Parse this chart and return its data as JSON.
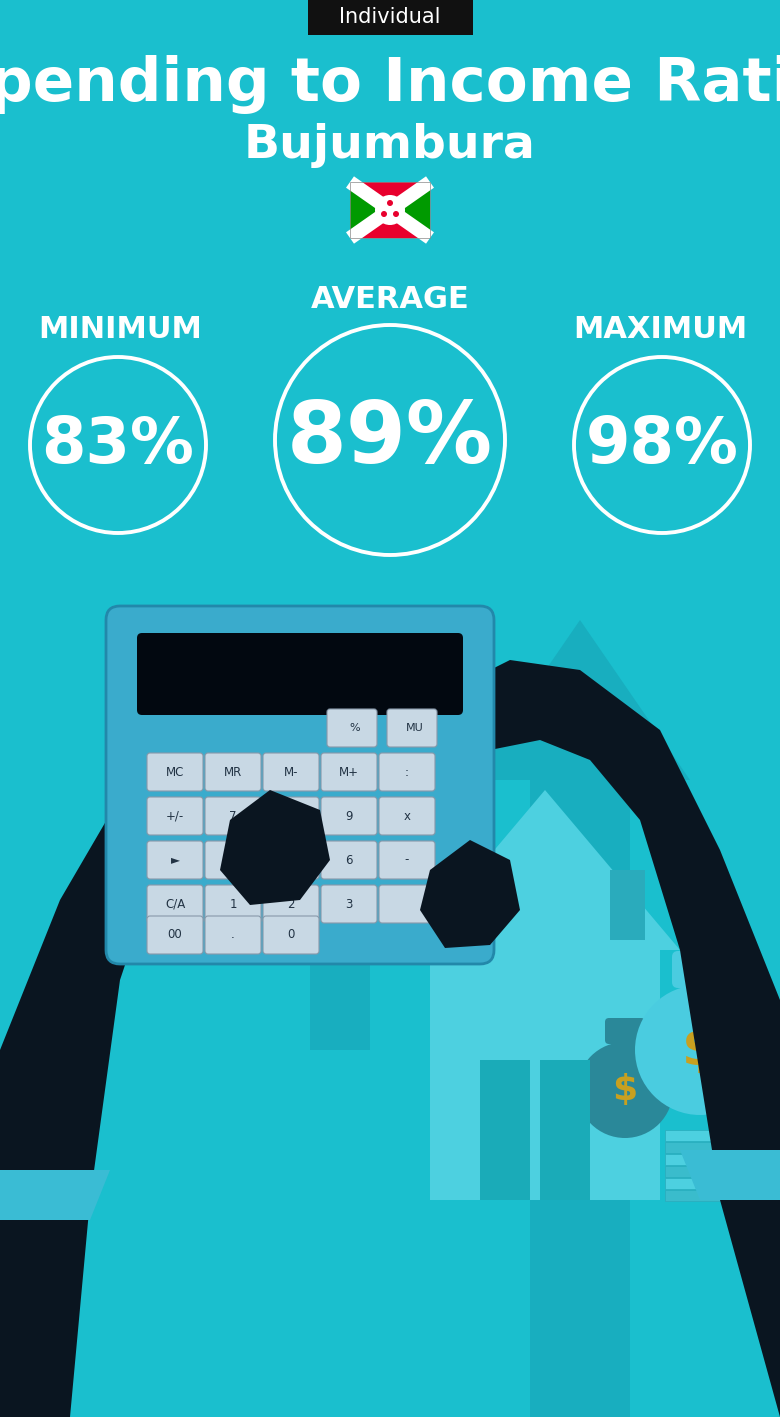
{
  "title": "Spending to Income Ratio",
  "subtitle": "Bujumbura",
  "badge_text": "Individual",
  "bg_color": "#1ABFCE",
  "text_color": "#FFFFFF",
  "badge_bg": "#111111",
  "badge_text_color": "#FFFFFF",
  "min_value": "83%",
  "avg_value": "89%",
  "max_value": "98%",
  "min_label": "MINIMUM",
  "avg_label": "AVERAGE",
  "max_label": "MAXIMUM",
  "circle_color": "#FFFFFF",
  "circle_linewidth": 2.8,
  "title_fontsize": 44,
  "subtitle_fontsize": 34,
  "badge_fontsize": 15,
  "label_fontsize": 22,
  "min_max_fontsize": 46,
  "avg_circle_fontsize": 62,
  "figsize": [
    7.8,
    14.17
  ],
  "dpi": 100,
  "arrow_color": "#18AEBF",
  "house_color": "#4DD0E0",
  "door_color": "#2AABBC",
  "hand_color": "#0A1520",
  "cuff_color": "#3ABCD4",
  "calc_color": "#3AABCC",
  "btn_color": "#C8D8E4",
  "bag_color": "#4ACCE0",
  "bag_dark": "#2A8899"
}
